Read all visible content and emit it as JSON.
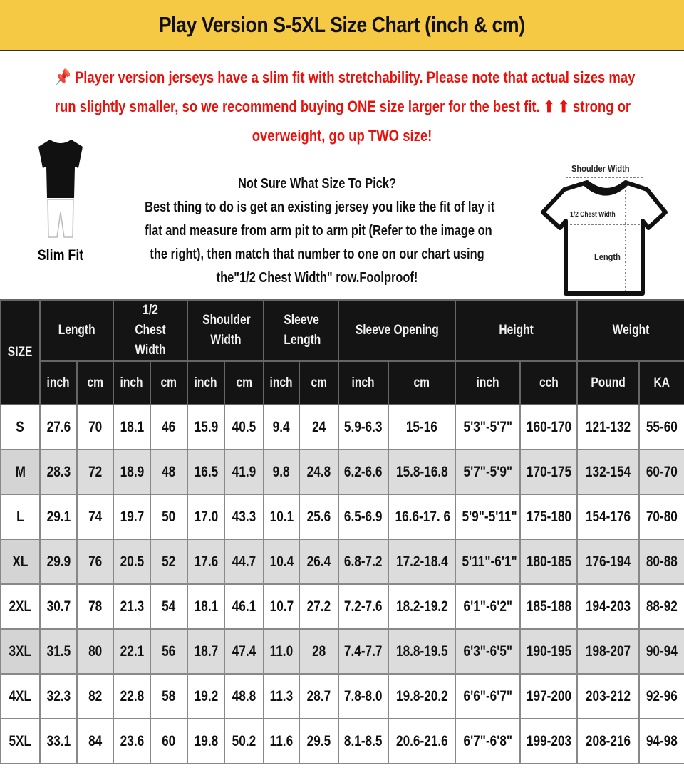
{
  "title": "Play Version S-5XL Size Chart (inch & cm)",
  "notice": {
    "icon": "pushpin-icon",
    "lines": [
      "Player version jerseys have a slim fit with stretchability. Please note that actual sizes may",
      "run slightly smaller, so we recommend buying ONE size larger for the best fit. ⬆ ⬆ strong or",
      "overweight, go up TWO size!"
    ],
    "color": "#e8120c"
  },
  "slim_fit": {
    "label": "Slim Fit"
  },
  "advice": {
    "lines": [
      "Not Sure What Size To Pick?",
      "Best thing to do is get an existing jersey you like the fit of lay it",
      "flat and measure from arm pit to arm pit (Refer to the image on",
      "the right), then match that number to one on our chart using",
      "the\"1/2 Chest Width\" row.Foolproof!"
    ]
  },
  "diagram": {
    "shoulder": "Shoulder Width",
    "chest": "1/2 Chest Width",
    "length": "Length"
  },
  "table": {
    "size_header": "SIZE",
    "groups": [
      "Length",
      "1/2 Chest Width",
      "Shoulder Width",
      "Sleeve Length",
      "Sleeve Opening",
      "Height",
      "Weight"
    ],
    "units": [
      "inch",
      "cm",
      "inch",
      "cm",
      "inch",
      "cm",
      "inch",
      "cm",
      "inch",
      "cm",
      "inch",
      "cch",
      "Pound",
      "KA"
    ],
    "rows": [
      [
        "S",
        "27.6",
        "70",
        "18.1",
        "46",
        "15.9",
        "40.5",
        "9.4",
        "24",
        "5.9-6.3",
        "15-16",
        "5'3\"-5'7\"",
        "160-170",
        "121-132",
        "55-60"
      ],
      [
        "M",
        "28.3",
        "72",
        "18.9",
        "48",
        "16.5",
        "41.9",
        "9.8",
        "24.8",
        "6.2-6.6",
        "15.8-16.8",
        "5'7\"-5'9\"",
        "170-175",
        "132-154",
        "60-70"
      ],
      [
        "L",
        "29.1",
        "74",
        "19.7",
        "50",
        "17.0",
        "43.3",
        "10.1",
        "25.6",
        "6.5-6.9",
        "16.6-17. 6",
        "5'9\"-5'11\"",
        "175-180",
        "154-176",
        "70-80"
      ],
      [
        "XL",
        "29.9",
        "76",
        "20.5",
        "52",
        "17.6",
        "44.7",
        "10.4",
        "26.4",
        "6.8-7.2",
        "17.2-18.4",
        "5'11\"-6'1\"",
        "180-185",
        "176-194",
        "80-88"
      ],
      [
        "2XL",
        "30.7",
        "78",
        "21.3",
        "54",
        "18.1",
        "46.1",
        "10.7",
        "27.2",
        "7.2-7.6",
        "18.2-19.2",
        "6'1\"-6'2\"",
        "185-188",
        "194-203",
        "88-92"
      ],
      [
        "3XL",
        "31.5",
        "80",
        "22.1",
        "56",
        "18.7",
        "47.4",
        "11.0",
        "28",
        "7.4-7.7",
        "18.8-19.5",
        "6'3\"-6'5\"",
        "190-195",
        "198-207",
        "90-94"
      ],
      [
        "4XL",
        "32.3",
        "82",
        "22.8",
        "58",
        "19.2",
        "48.8",
        "11.3",
        "28.7",
        "7.8-8.0",
        "19.8-20.2",
        "6'6\"-6'7\"",
        "197-200",
        "203-212",
        "92-96"
      ],
      [
        "5XL",
        "33.1",
        "84",
        "23.6",
        "60",
        "19.8",
        "50.2",
        "11.6",
        "29.5",
        "8.1-8.5",
        "20.6-21.6",
        "6'7\"-6'8\"",
        "199-203",
        "208-216",
        "94-98"
      ]
    ]
  }
}
